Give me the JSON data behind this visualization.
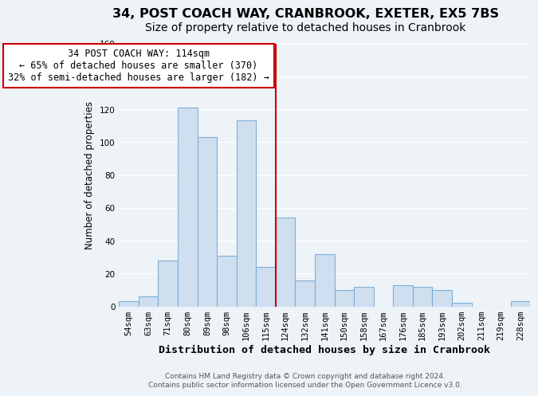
{
  "title": "34, POST COACH WAY, CRANBROOK, EXETER, EX5 7BS",
  "subtitle": "Size of property relative to detached houses in Cranbrook",
  "xlabel": "Distribution of detached houses by size in Cranbrook",
  "ylabel": "Number of detached properties",
  "bar_labels": [
    "54sqm",
    "63sqm",
    "71sqm",
    "80sqm",
    "89sqm",
    "98sqm",
    "106sqm",
    "115sqm",
    "124sqm",
    "132sqm",
    "141sqm",
    "150sqm",
    "158sqm",
    "167sqm",
    "176sqm",
    "185sqm",
    "193sqm",
    "202sqm",
    "211sqm",
    "219sqm",
    "228sqm"
  ],
  "bar_values": [
    3,
    6,
    28,
    121,
    103,
    31,
    113,
    24,
    54,
    16,
    32,
    10,
    12,
    0,
    13,
    12,
    10,
    2,
    0,
    0,
    3
  ],
  "bar_color": "#cfdff0",
  "bar_edge_color": "#7dafd4",
  "marker_line_x_label": "115sqm",
  "marker_line_color": "#cc0000",
  "annotation_title": "34 POST COACH WAY: 114sqm",
  "annotation_line1": "← 65% of detached houses are smaller (370)",
  "annotation_line2": "32% of semi-detached houses are larger (182) →",
  "annotation_box_color": "#ffffff",
  "annotation_box_edge_color": "#cc0000",
  "ylim": [
    0,
    160
  ],
  "yticks": [
    0,
    20,
    40,
    60,
    80,
    100,
    120,
    140,
    160
  ],
  "footer_line1": "Contains HM Land Registry data © Crown copyright and database right 2024.",
  "footer_line2": "Contains public sector information licensed under the Open Government Licence v3.0.",
  "background_color": "#eef3f8",
  "grid_color": "#ffffff",
  "title_fontsize": 11.5,
  "subtitle_fontsize": 10,
  "xlabel_fontsize": 9.5,
  "ylabel_fontsize": 8.5,
  "tick_fontsize": 7.5,
  "footer_fontsize": 6.5
}
